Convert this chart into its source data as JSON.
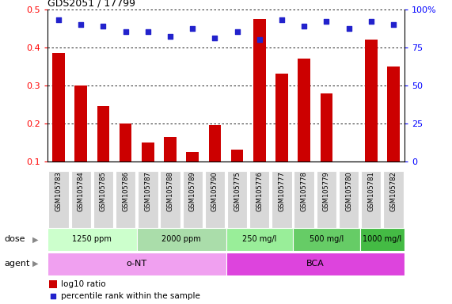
{
  "title": "GDS2051 / 17799",
  "samples": [
    "GSM105783",
    "GSM105784",
    "GSM105785",
    "GSM105786",
    "GSM105787",
    "GSM105788",
    "GSM105789",
    "GSM105790",
    "GSM105775",
    "GSM105776",
    "GSM105777",
    "GSM105778",
    "GSM105779",
    "GSM105780",
    "GSM105781",
    "GSM105782"
  ],
  "log10_ratio": [
    0.385,
    0.3,
    0.245,
    0.2,
    0.15,
    0.163,
    0.125,
    0.195,
    0.13,
    0.475,
    0.33,
    0.37,
    0.278,
    0.1,
    0.42,
    0.35
  ],
  "percentile_pct": [
    93,
    90,
    89,
    85,
    85,
    82,
    87,
    81,
    85,
    80,
    93,
    89,
    92,
    87,
    92,
    90
  ],
  "ylim_left": [
    0.1,
    0.5
  ],
  "ylim_right": [
    0,
    100
  ],
  "yticks_left": [
    0.1,
    0.2,
    0.3,
    0.4,
    0.5
  ],
  "ytick_labels_left": [
    "0.1",
    "0.2",
    "0.3",
    "0.4",
    "0.5"
  ],
  "yticks_right": [
    0,
    25,
    50,
    75,
    100
  ],
  "ytick_labels_right": [
    "0",
    "25",
    "50",
    "75",
    "100%"
  ],
  "bar_color": "#cc0000",
  "scatter_color": "#2222cc",
  "dose_groups": [
    {
      "label": "1250 ppm",
      "start": 0,
      "end": 4,
      "color": "#ccffcc"
    },
    {
      "label": "2000 ppm",
      "start": 4,
      "end": 8,
      "color": "#aaddaa"
    },
    {
      "label": "250 mg/l",
      "start": 8,
      "end": 11,
      "color": "#99ee99"
    },
    {
      "label": "500 mg/l",
      "start": 11,
      "end": 14,
      "color": "#66cc66"
    },
    {
      "label": "1000 mg/l",
      "start": 14,
      "end": 16,
      "color": "#44bb44"
    }
  ],
  "agent_groups": [
    {
      "label": "o-NT",
      "start": 0,
      "end": 8,
      "color": "#f0a0f0"
    },
    {
      "label": "BCA",
      "start": 8,
      "end": 16,
      "color": "#dd44dd"
    }
  ],
  "legend_bar_color": "#cc0000",
  "legend_scatter_color": "#2222cc",
  "legend_bar_label": "log10 ratio",
  "legend_scatter_label": "percentile rank within the sample",
  "xlabel_dose": "dose",
  "xlabel_agent": "agent",
  "grid_yticks": [
    0.2,
    0.3,
    0.4,
    0.5
  ],
  "bar_bottom": 0.1,
  "sample_bg": "#d8d8d8"
}
